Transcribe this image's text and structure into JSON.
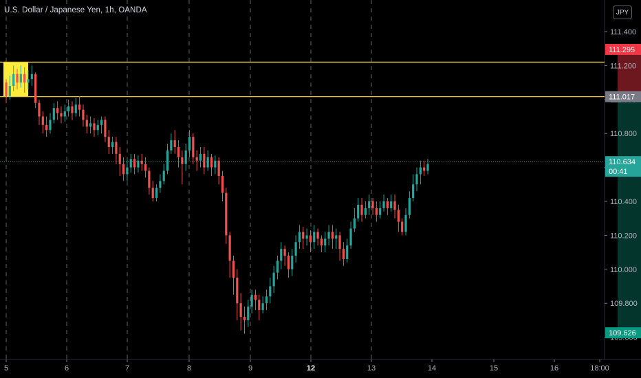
{
  "header": {
    "title": "U.S. Dollar / Japanese Yen, 1h, OANDA",
    "currency_button": "JPY"
  },
  "chart_data": {
    "type": "candlestick",
    "symbol": "USDJPY",
    "ylim": [
      109.58,
      111.62
    ],
    "y_ticks": [
      "111.400",
      "111.200",
      "111.000",
      "110.800",
      "110.600",
      "110.400",
      "110.200",
      "110.000",
      "109.800",
      "109.600"
    ],
    "x_ticks": [
      "5",
      "6",
      "7",
      "8",
      "9",
      "12",
      "13",
      "14",
      "15",
      "16",
      "18:00"
    ],
    "bold_x_ticks": [
      "12"
    ],
    "price_labels": [
      {
        "value": 111.295,
        "text": "111.295",
        "color": "#f23645"
      },
      {
        "value": 111.017,
        "text": "111.017",
        "color": "#787b86"
      },
      {
        "value": 110.634,
        "text": "110.634",
        "sub": "00:41",
        "color": "#26a69a"
      },
      {
        "value": 109.626,
        "text": "109.626",
        "color": "#089981"
      }
    ],
    "horizontal_lines": [
      {
        "value": 111.22,
        "color": "#e5c541"
      },
      {
        "value": 111.017,
        "color": "#e5c541"
      }
    ],
    "current_price_line": {
      "value": 110.634,
      "color": "#26a69a"
    },
    "highlight_box": {
      "x_start": 5.0,
      "x_end": 5.36,
      "y_low": 111.017,
      "y_high": 111.22,
      "color": "#ffeb3b"
    },
    "position": {
      "type": "short",
      "x_start": 15.0,
      "x_end": 16.35,
      "entry": 111.017,
      "stop": 111.295,
      "target": 109.626
    },
    "colors": {
      "up": "#26a69a",
      "down": "#ef5350",
      "grid": "#787b86"
    },
    "candles": [
      [
        111.1,
        111.02,
        111.12,
        110.98
      ],
      [
        111.02,
        111.08,
        111.14,
        111.0
      ],
      [
        111.08,
        111.15,
        111.2,
        111.05
      ],
      [
        111.15,
        111.1,
        111.18,
        111.06
      ],
      [
        111.1,
        111.15,
        111.2,
        111.07
      ],
      [
        111.15,
        111.1,
        111.19,
        111.04
      ],
      [
        111.1,
        111.12,
        111.17,
        111.06
      ],
      [
        111.12,
        111.15,
        111.2,
        111.08
      ],
      [
        111.15,
        110.98,
        111.16,
        110.95
      ],
      [
        110.98,
        110.9,
        111.0,
        110.85
      ],
      [
        110.9,
        110.85,
        110.93,
        110.8
      ],
      [
        110.85,
        110.82,
        110.9,
        110.78
      ],
      [
        110.82,
        110.88,
        110.92,
        110.8
      ],
      [
        110.88,
        110.95,
        110.98,
        110.86
      ],
      [
        110.95,
        110.92,
        110.99,
        110.88
      ],
      [
        110.92,
        110.9,
        110.96,
        110.86
      ],
      [
        110.9,
        110.93,
        110.97,
        110.87
      ],
      [
        110.93,
        110.96,
        111.0,
        110.9
      ],
      [
        110.96,
        110.92,
        110.99,
        110.88
      ],
      [
        110.92,
        110.97,
        111.01,
        110.9
      ],
      [
        110.97,
        110.94,
        111.02,
        110.9
      ],
      [
        110.94,
        110.88,
        110.97,
        110.84
      ],
      [
        110.88,
        110.84,
        110.91,
        110.8
      ],
      [
        110.84,
        110.86,
        110.9,
        110.8
      ],
      [
        110.86,
        110.82,
        110.89,
        110.78
      ],
      [
        110.82,
        110.85,
        110.88,
        110.79
      ],
      [
        110.85,
        110.88,
        110.9,
        110.8
      ],
      [
        110.88,
        110.78,
        110.9,
        110.75
      ],
      [
        110.78,
        110.72,
        110.82,
        110.68
      ],
      [
        110.72,
        110.75,
        110.78,
        110.68
      ],
      [
        110.75,
        110.68,
        110.78,
        110.62
      ],
      [
        110.68,
        110.62,
        110.72,
        110.55
      ],
      [
        110.62,
        110.56,
        110.66,
        110.52
      ],
      [
        110.56,
        110.6,
        110.64,
        110.52
      ],
      [
        110.6,
        110.65,
        110.68,
        110.57
      ],
      [
        110.65,
        110.6,
        110.68,
        110.56
      ],
      [
        110.6,
        110.64,
        110.67,
        110.57
      ],
      [
        110.64,
        110.62,
        110.68,
        110.58
      ],
      [
        110.62,
        110.58,
        110.66,
        110.54
      ],
      [
        110.58,
        110.48,
        110.6,
        110.44
      ],
      [
        110.48,
        110.42,
        110.52,
        110.4
      ],
      [
        110.42,
        110.48,
        110.5,
        110.4
      ],
      [
        110.48,
        110.52,
        110.56,
        110.45
      ],
      [
        110.52,
        110.58,
        110.62,
        110.5
      ],
      [
        110.58,
        110.7,
        110.74,
        110.56
      ],
      [
        110.7,
        110.76,
        110.8,
        110.68
      ],
      [
        110.76,
        110.72,
        110.82,
        110.68
      ],
      [
        110.72,
        110.66,
        110.76,
        110.6
      ],
      [
        110.66,
        110.62,
        110.7,
        110.5
      ],
      [
        110.62,
        110.7,
        110.74,
        110.58
      ],
      [
        110.7,
        110.78,
        110.82,
        110.66
      ],
      [
        110.78,
        110.66,
        110.8,
        110.62
      ],
      [
        110.66,
        110.64,
        110.7,
        110.58
      ],
      [
        110.64,
        110.68,
        110.72,
        110.6
      ],
      [
        110.68,
        110.6,
        110.72,
        110.56
      ],
      [
        110.6,
        110.66,
        110.7,
        110.58
      ],
      [
        110.66,
        110.6,
        110.68,
        110.55
      ],
      [
        110.6,
        110.64,
        110.67,
        110.56
      ],
      [
        110.64,
        110.55,
        110.66,
        110.5
      ],
      [
        110.55,
        110.45,
        110.58,
        110.4
      ],
      [
        110.45,
        110.2,
        110.48,
        110.15
      ],
      [
        110.2,
        110.05,
        110.22,
        109.95
      ],
      [
        110.05,
        109.95,
        110.08,
        109.85
      ],
      [
        109.95,
        109.8,
        110.0,
        109.7
      ],
      [
        109.8,
        109.72,
        109.86,
        109.64
      ],
      [
        109.72,
        109.7,
        109.78,
        109.62
      ],
      [
        109.7,
        109.78,
        109.82,
        109.66
      ],
      [
        109.78,
        109.85,
        109.88,
        109.74
      ],
      [
        109.85,
        109.82,
        109.88,
        109.76
      ],
      [
        109.82,
        109.76,
        109.85,
        109.7
      ],
      [
        109.76,
        109.8,
        109.84,
        109.74
      ],
      [
        109.8,
        109.84,
        109.88,
        109.76
      ],
      [
        109.84,
        109.9,
        109.95,
        109.8
      ],
      [
        109.9,
        109.98,
        110.02,
        109.86
      ],
      [
        109.98,
        110.05,
        110.08,
        109.94
      ],
      [
        110.05,
        110.12,
        110.16,
        110.0
      ],
      [
        110.12,
        110.08,
        110.14,
        110.02
      ],
      [
        110.08,
        110.0,
        110.1,
        109.95
      ],
      [
        110.0,
        110.08,
        110.12,
        109.96
      ],
      [
        110.08,
        110.16,
        110.2,
        110.04
      ],
      [
        110.16,
        110.22,
        110.26,
        110.12
      ],
      [
        110.22,
        110.18,
        110.25,
        110.12
      ],
      [
        110.18,
        110.2,
        110.24,
        110.14
      ],
      [
        110.2,
        110.16,
        110.23,
        110.1
      ],
      [
        110.16,
        110.22,
        110.26,
        110.12
      ],
      [
        110.22,
        110.18,
        110.24,
        110.14
      ],
      [
        110.18,
        110.14,
        110.2,
        110.1
      ],
      [
        110.14,
        110.18,
        110.22,
        110.1
      ],
      [
        110.18,
        110.22,
        110.26,
        110.14
      ],
      [
        110.22,
        110.18,
        110.26,
        110.12
      ],
      [
        110.18,
        110.2,
        110.24,
        110.12
      ],
      [
        110.2,
        110.12,
        110.22,
        110.05
      ],
      [
        110.12,
        110.06,
        110.16,
        110.02
      ],
      [
        110.06,
        110.14,
        110.18,
        110.04
      ],
      [
        110.14,
        110.24,
        110.28,
        110.12
      ],
      [
        110.24,
        110.3,
        110.36,
        110.22
      ],
      [
        110.3,
        110.38,
        110.42,
        110.28
      ],
      [
        110.38,
        110.32,
        110.42,
        110.28
      ],
      [
        110.32,
        110.36,
        110.4,
        110.3
      ],
      [
        110.36,
        110.4,
        110.44,
        110.32
      ],
      [
        110.4,
        110.36,
        110.42,
        110.32
      ],
      [
        110.36,
        110.32,
        110.4,
        110.28
      ],
      [
        110.32,
        110.36,
        110.4,
        110.3
      ],
      [
        110.36,
        110.4,
        110.44,
        110.34
      ],
      [
        110.4,
        110.36,
        110.42,
        110.32
      ],
      [
        110.36,
        110.4,
        110.44,
        110.34
      ],
      [
        110.4,
        110.35,
        110.44,
        110.3
      ],
      [
        110.35,
        110.28,
        110.38,
        110.22
      ],
      [
        110.28,
        110.22,
        110.3,
        110.2
      ],
      [
        110.22,
        110.32,
        110.36,
        110.2
      ],
      [
        110.32,
        110.42,
        110.46,
        110.3
      ],
      [
        110.42,
        110.5,
        110.56,
        110.4
      ],
      [
        110.5,
        110.56,
        110.6,
        110.46
      ],
      [
        110.56,
        110.6,
        110.64,
        110.5
      ],
      [
        110.6,
        110.58,
        110.64,
        110.55
      ],
      [
        110.58,
        110.62,
        110.65,
        110.56
      ]
    ]
  }
}
